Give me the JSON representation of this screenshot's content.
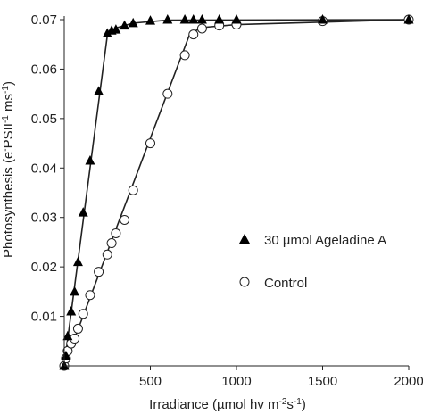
{
  "chart_data": {
    "type": "scatter",
    "xlabel": "Irradiance (µmol hv m",
    "xlabel_sup1": "-2",
    "xlabel_mid": "s",
    "xlabel_sup2": "-1",
    "xlabel_end": ")",
    "ylabel": "Photosynthesis (e",
    "ylabel_sup1": "-",
    "ylabel_mid": "PSII",
    "ylabel_sup2": "-1",
    "ylabel_mid2": " ms",
    "ylabel_sup3": "-1",
    "ylabel_end": ")",
    "xlim": [
      0,
      2000
    ],
    "ylim": [
      0,
      0.07
    ],
    "x_ticks": [
      "500",
      "1000",
      "1500",
      "2000"
    ],
    "y_ticks": [
      "0.01",
      "0.02",
      "0.03",
      "0.04",
      "0.05",
      "0.06",
      "0.07"
    ],
    "legend_position": "right",
    "series": [
      {
        "name": "30 µmol Ageladine A",
        "marker": "filled-triangle",
        "x": [
          0,
          10,
          20,
          40,
          60,
          80,
          110,
          150,
          200,
          250,
          275,
          300,
          350,
          400,
          500,
          600,
          700,
          750,
          800,
          900,
          1000,
          1500,
          2000
        ],
        "y": [
          0.0,
          0.002,
          0.006,
          0.011,
          0.015,
          0.021,
          0.031,
          0.0415,
          0.0555,
          0.0672,
          0.0678,
          0.068,
          0.0688,
          0.0693,
          0.0698,
          0.07,
          0.07,
          0.07,
          0.07,
          0.07,
          0.07,
          0.07,
          0.07
        ]
      },
      {
        "name": "Control",
        "marker": "open-circle",
        "x": [
          0,
          10,
          20,
          40,
          60,
          80,
          110,
          150,
          200,
          250,
          275,
          300,
          350,
          400,
          500,
          600,
          700,
          750,
          800,
          900,
          1000,
          1500,
          2000
        ],
        "y": [
          0.0,
          0.0015,
          0.003,
          0.0045,
          0.0055,
          0.0075,
          0.0105,
          0.0143,
          0.019,
          0.0225,
          0.0248,
          0.0268,
          0.0295,
          0.0355,
          0.045,
          0.055,
          0.0628,
          0.067,
          0.0682,
          0.0688,
          0.069,
          0.0697,
          0.07
        ]
      }
    ],
    "fit_lines": [
      {
        "series": "30 µmol Ageladine A",
        "x": [
          0,
          250,
          300,
          400,
          600,
          2000
        ],
        "y": [
          0.0,
          0.0668,
          0.0683,
          0.0693,
          0.0699,
          0.07
        ]
      },
      {
        "series": "Control",
        "x": [
          0,
          730,
          800,
          1000,
          2000
        ],
        "y": [
          0.0,
          0.0672,
          0.0684,
          0.069,
          0.07
        ]
      }
    ],
    "colors": {
      "ink": "#222222",
      "marker_fill": "#000000",
      "open_marker_fill": "#ffffff"
    }
  }
}
